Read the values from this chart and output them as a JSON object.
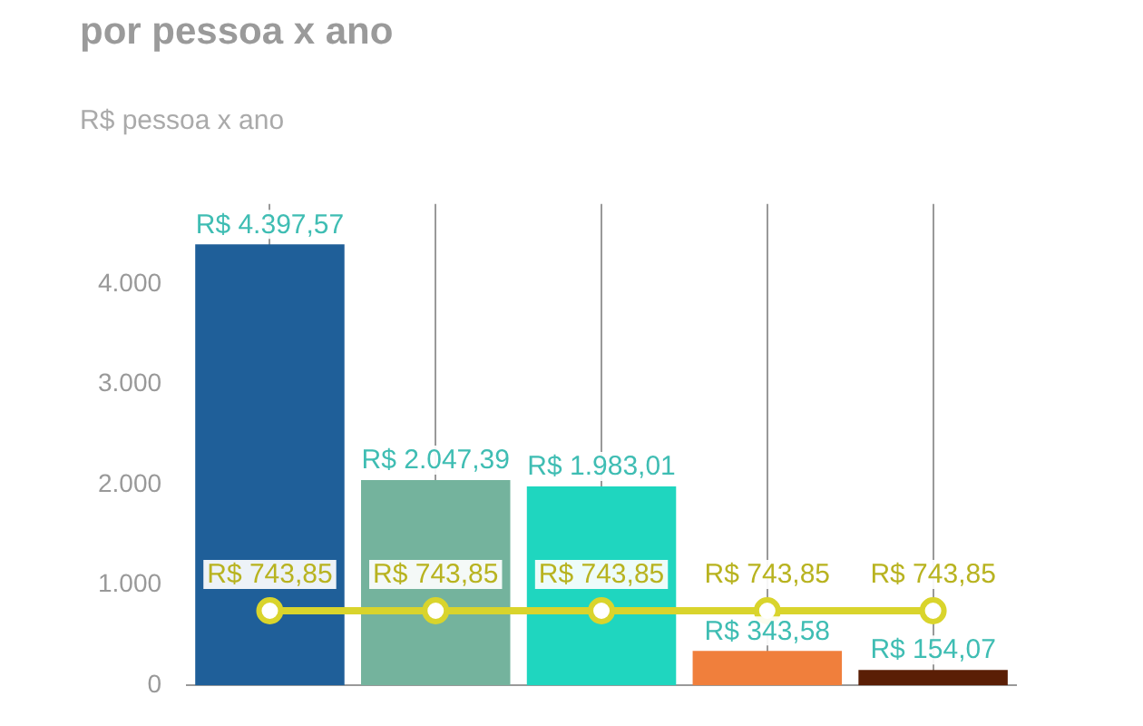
{
  "chart_data": {
    "type": "bar",
    "title": "por pessoa x ano",
    "subtitle": "R$ pessoa x ano",
    "categories": [
      null,
      null,
      null,
      null,
      null
    ],
    "series": [
      {
        "colors": [
          "#1f5f99",
          "#74b39d",
          "#1fd6bf",
          "#f07f3c",
          "#5a1e05"
        ],
        "values": [
          4397.57,
          2047.39,
          1983.01,
          343.58,
          154.07
        ],
        "value_labels": [
          "R$ 4.397,57",
          "R$ 2.047,39",
          "R$ 1.983,01",
          "R$ 343,58",
          "R$ 154,07"
        ]
      },
      {
        "type": "line",
        "color": "#d9d42c",
        "marker": "circle",
        "values": [
          743.85,
          743.85,
          743.85,
          743.85,
          743.85
        ],
        "value_labels": [
          "R$ 743,85",
          "R$ 743,85",
          "R$ 743,85",
          "R$ 743,85",
          "R$ 743,85"
        ]
      }
    ],
    "ylim": [
      0,
      4800
    ],
    "yticks": [
      {
        "value": 0,
        "label": "0"
      },
      {
        "value": 1000,
        "label": "1.000"
      },
      {
        "value": 2000,
        "label": "2.000"
      },
      {
        "value": 3000,
        "label": "3.000"
      },
      {
        "value": 4000,
        "label": "4.000"
      }
    ],
    "grid": "x",
    "legend": false
  }
}
